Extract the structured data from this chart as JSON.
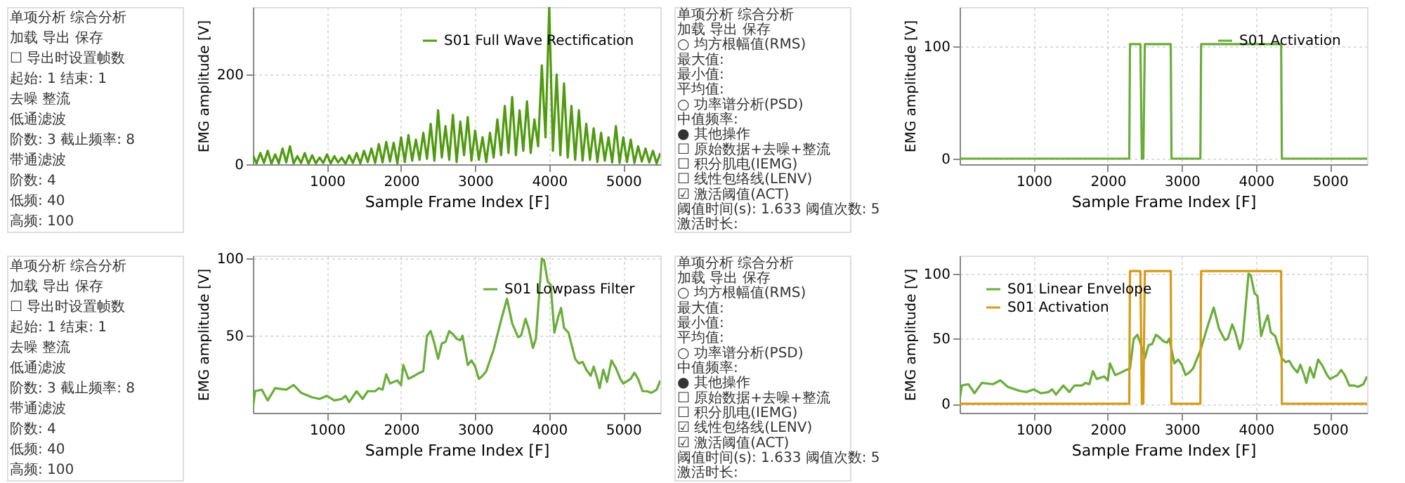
{
  "chart_data": [
    {
      "type": "other",
      "annotations": [
        "单项分析   综合分析",
        "加载   导出   保存",
        "☐ 导出时设置帧数",
        "起始: 1     结束: 1",
        "去噪   整流",
        "低通滤波",
        "阶数: 3     截止频率: 8",
        "带通滤波",
        "阶数: 4",
        "低频: 40",
        "高频: 100"
      ]
    },
    {
      "type": "line",
      "xlabel": "Sample Frame Index [F]",
      "ylabel": "EMG amplitude [V]",
      "xlim": [
        0,
        5500
      ],
      "xticks": [
        1000,
        2000,
        3000,
        4000,
        5000
      ],
      "ylim": [
        0,
        350
      ],
      "yticks": [
        0,
        200
      ],
      "grid": true,
      "legend": "top right",
      "series": [
        {
          "name": "S01 Full Wave Rectification",
          "color": "#4f9a0f",
          "x": [
            0,
            50,
            100,
            150,
            200,
            250,
            300,
            350,
            400,
            450,
            500,
            550,
            600,
            650,
            700,
            750,
            800,
            850,
            900,
            950,
            1000,
            1050,
            1100,
            1150,
            1200,
            1250,
            1300,
            1350,
            1400,
            1450,
            1500,
            1550,
            1600,
            1650,
            1700,
            1750,
            1800,
            1850,
            1900,
            1950,
            2000,
            2050,
            2100,
            2150,
            2200,
            2250,
            2300,
            2350,
            2400,
            2450,
            2500,
            2550,
            2600,
            2650,
            2700,
            2750,
            2800,
            2850,
            2900,
            2950,
            3000,
            3050,
            3100,
            3150,
            3200,
            3250,
            3300,
            3350,
            3400,
            3450,
            3500,
            3550,
            3600,
            3650,
            3700,
            3750,
            3800,
            3850,
            3900,
            3950,
            4000,
            4050,
            4100,
            4150,
            4200,
            4250,
            4300,
            4350,
            4400,
            4450,
            4500,
            4550,
            4600,
            4650,
            4700,
            4750,
            4800,
            4850,
            4900,
            4950,
            5000,
            5050,
            5100,
            5150,
            5200,
            5250,
            5300,
            5350,
            5400,
            5450,
            5500
          ],
          "values": [
            20,
            2,
            25,
            3,
            30,
            1,
            22,
            2,
            35,
            4,
            40,
            2,
            18,
            3,
            25,
            1,
            20,
            2,
            15,
            3,
            22,
            2,
            18,
            4,
            15,
            1,
            20,
            3,
            25,
            2,
            30,
            5,
            35,
            3,
            45,
            4,
            50,
            6,
            48,
            2,
            60,
            5,
            65,
            8,
            55,
            10,
            70,
            12,
            90,
            8,
            120,
            15,
            85,
            10,
            110,
            5,
            95,
            20,
            105,
            8,
            75,
            10,
            60,
            5,
            70,
            15,
            100,
            20,
            130,
            25,
            150,
            20,
            120,
            30,
            140,
            25,
            100,
            40,
            220,
            60,
            350,
            30,
            200,
            20,
            180,
            15,
            130,
            10,
            120,
            8,
            90,
            10,
            80,
            5,
            70,
            8,
            60,
            4,
            85,
            3,
            60,
            5,
            55,
            3,
            40,
            6,
            35,
            4,
            30,
            2,
            25
          ]
        }
      ]
    },
    {
      "type": "other",
      "annotations": [
        "单项分析   综合分析",
        "加载   导出   保存",
        "○ 均方根幅值(RMS)",
        "最大值:",
        "最小值:",
        "平均值:",
        "○ 功率谱分析(PSD)",
        "中值频率:",
        "● 其他操作",
        "☐ 原始数据+去噪+整流",
        "☐ 积分肌电(IEMG)",
        "☐ 线性包络线(LENV)",
        "☑ 激活阈值(ACT)",
        "阈值时间(s): 1.633   阈值次数: 5",
        "激活时长:"
      ]
    },
    {
      "type": "line",
      "xlabel": "Sample Frame Index [F]",
      "ylabel": "EMG amplitude [V]",
      "xlim": [
        0,
        5500
      ],
      "xticks": [
        1000,
        2000,
        3000,
        4000,
        5000
      ],
      "ylim": [
        -5,
        135
      ],
      "yticks": [
        0,
        100
      ],
      "grid": true,
      "legend": "top right",
      "series": [
        {
          "name": "S01 Activation",
          "color": "#6aad3a",
          "x": [
            0,
            2290,
            2300,
            2440,
            2460,
            2480,
            2500,
            2850,
            2860,
            3250,
            3260,
            4340,
            4350,
            5500
          ],
          "values": [
            0,
            0,
            102,
            102,
            0,
            0,
            102,
            102,
            0,
            0,
            102,
            102,
            0,
            0
          ]
        }
      ]
    },
    {
      "type": "other",
      "annotations": [
        "单项分析   综合分析",
        "加载   导出   保存",
        "☐ 导出时设置帧数",
        "起始: 1     结束: 1",
        "去噪   整流",
        "低通滤波",
        "阶数: 3     截止频率: 8",
        "带通滤波",
        "阶数: 4",
        "低频: 40",
        "高频: 100"
      ]
    },
    {
      "type": "line",
      "xlabel": "Sample Frame Index [F]",
      "ylabel": "EMG amplitude [V]",
      "xlim": [
        0,
        5500
      ],
      "xticks": [
        1000,
        2000,
        3000,
        4000,
        5000
      ],
      "ylim": [
        0,
        102
      ],
      "yticks": [
        50,
        100
      ],
      "grid": true,
      "legend": "top right",
      "series": [
        {
          "name": "S01 Lowpass Filter",
          "color": "#6aad3a",
          "x": [
            0,
            30,
            120,
            200,
            300,
            450,
            550,
            650,
            800,
            900,
            1000,
            1100,
            1200,
            1250,
            1300,
            1400,
            1480,
            1550,
            1650,
            1700,
            1750,
            1800,
            1850,
            1950,
            2000,
            2030,
            2100,
            2180,
            2250,
            2300,
            2350,
            2400,
            2450,
            2500,
            2550,
            2600,
            2650,
            2700,
            2750,
            2800,
            2830,
            2900,
            2950,
            3000,
            3050,
            3100,
            3150,
            3250,
            3350,
            3430,
            3500,
            3580,
            3620,
            3680,
            3720,
            3780,
            3820,
            3900,
            3930,
            3980,
            4020,
            4070,
            4120,
            4160,
            4200,
            4260,
            4350,
            4400,
            4450,
            4500,
            4560,
            4600,
            4650,
            4680,
            4730,
            4780,
            4840,
            4900,
            4960,
            5000,
            5100,
            5150,
            5200,
            5260,
            5320,
            5380,
            5450,
            5500
          ],
          "values": [
            3,
            14,
            15,
            8,
            16,
            15,
            18,
            13,
            10,
            9,
            11,
            8,
            9,
            11,
            7,
            14,
            9,
            14,
            14,
            16,
            15,
            25,
            19,
            21,
            18,
            31,
            22,
            24,
            26,
            27,
            50,
            53,
            45,
            35,
            45,
            46,
            53,
            51,
            48,
            47,
            50,
            31,
            34,
            30,
            22,
            24,
            27,
            41,
            60,
            74,
            58,
            49,
            50,
            61,
            55,
            42,
            48,
            100,
            99,
            85,
            83,
            52,
            62,
            68,
            55,
            52,
            35,
            32,
            33,
            28,
            24,
            30,
            22,
            16,
            28,
            20,
            34,
            29,
            22,
            19,
            22,
            26,
            22,
            14,
            14,
            13,
            15,
            21
          ]
        }
      ]
    },
    {
      "type": "other",
      "annotations": [
        "单项分析   综合分析",
        "加载   导出   保存",
        "○ 均方根幅值(RMS)",
        "最大值:",
        "最小值:",
        "平均值:",
        "○ 功率谱分析(PSD)",
        "中值频率:",
        "● 其他操作",
        "☐ 原始数据+去噪+整流",
        "☐ 积分肌电(IEMG)",
        "☑ 线性包络线(LENV)",
        "☑ 激活阈值(ACT)",
        "阈值时间(s): 1.633   阈值次数: 5",
        "激活时长:"
      ]
    },
    {
      "type": "line",
      "xlabel": "Sample Frame Index [F]",
      "ylabel": "EMG amplitude [V]",
      "xlim": [
        0,
        5500
      ],
      "xticks": [
        1000,
        2000,
        3000,
        4000,
        5000
      ],
      "ylim": [
        -7,
        114
      ],
      "yticks": [
        0,
        50,
        100
      ],
      "grid": true,
      "legend": "top left",
      "series": [
        {
          "name": "S01 Linear Envelope",
          "color": "#6aad3a",
          "x": [
            0,
            30,
            120,
            200,
            300,
            450,
            550,
            650,
            800,
            900,
            1000,
            1100,
            1200,
            1250,
            1300,
            1400,
            1480,
            1550,
            1650,
            1700,
            1750,
            1800,
            1850,
            1950,
            2000,
            2030,
            2100,
            2180,
            2250,
            2300,
            2350,
            2400,
            2450,
            2500,
            2550,
            2600,
            2650,
            2700,
            2750,
            2800,
            2830,
            2900,
            2950,
            3000,
            3050,
            3100,
            3150,
            3250,
            3350,
            3430,
            3500,
            3580,
            3620,
            3680,
            3720,
            3780,
            3820,
            3900,
            3930,
            3980,
            4020,
            4070,
            4120,
            4160,
            4200,
            4260,
            4350,
            4400,
            4450,
            4500,
            4560,
            4600,
            4650,
            4680,
            4730,
            4780,
            4840,
            4900,
            4960,
            5000,
            5100,
            5150,
            5200,
            5260,
            5320,
            5380,
            5450,
            5500
          ],
          "values": [
            3,
            14,
            15,
            8,
            16,
            15,
            18,
            13,
            10,
            9,
            11,
            8,
            9,
            11,
            7,
            14,
            9,
            14,
            14,
            16,
            15,
            25,
            19,
            21,
            18,
            31,
            22,
            24,
            26,
            27,
            50,
            53,
            45,
            35,
            45,
            46,
            53,
            51,
            48,
            47,
            50,
            31,
            34,
            30,
            22,
            24,
            27,
            41,
            60,
            74,
            58,
            49,
            50,
            61,
            55,
            42,
            48,
            100,
            99,
            85,
            83,
            52,
            62,
            68,
            55,
            52,
            35,
            32,
            33,
            28,
            24,
            30,
            22,
            16,
            28,
            20,
            34,
            29,
            22,
            19,
            22,
            26,
            22,
            14,
            14,
            13,
            15,
            21
          ]
        },
        {
          "name": "S01 Activation",
          "color": "#d49a1a",
          "x": [
            0,
            2290,
            2300,
            2440,
            2460,
            2480,
            2500,
            2850,
            2860,
            3250,
            3260,
            4340,
            4350,
            5500
          ],
          "values": [
            0,
            0,
            102,
            102,
            0,
            0,
            102,
            102,
            0,
            0,
            102,
            102,
            0,
            0
          ]
        }
      ]
    }
  ]
}
